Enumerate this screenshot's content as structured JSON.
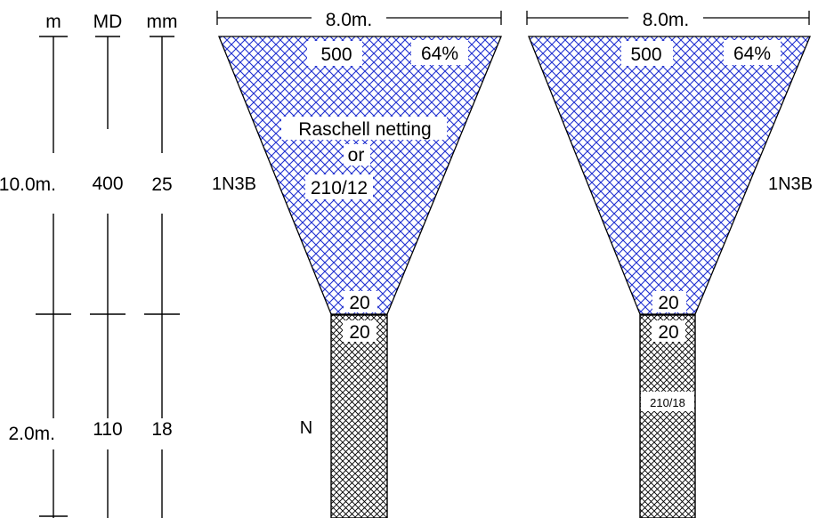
{
  "scale": {
    "headers": [
      "m",
      "MD",
      "mm"
    ],
    "upper_section": [
      "10.0m.",
      "400",
      "25"
    ],
    "lower_section": [
      "2.0m.",
      "110",
      "18"
    ]
  },
  "left_net": {
    "width_label": "8.0m.",
    "meshes_around": "500",
    "taper": "64%",
    "material_line1": "Raschell netting",
    "material_line2": "or",
    "material_line3": "210/12",
    "cut_label": "1N3B",
    "bottom_meshes": "20",
    "codend_top_meshes": "20",
    "codend_label": "N"
  },
  "right_net": {
    "width_label": "8.0m.",
    "meshes_around": "500",
    "taper": "64%",
    "cut_label": "1N3B",
    "bottom_meshes": "20",
    "codend_top_meshes": "20",
    "codend_twine": "210/18"
  },
  "colors": {
    "net_mesh": "#1f2fd0",
    "codend_mesh": "#000000",
    "outline": "#000000"
  }
}
